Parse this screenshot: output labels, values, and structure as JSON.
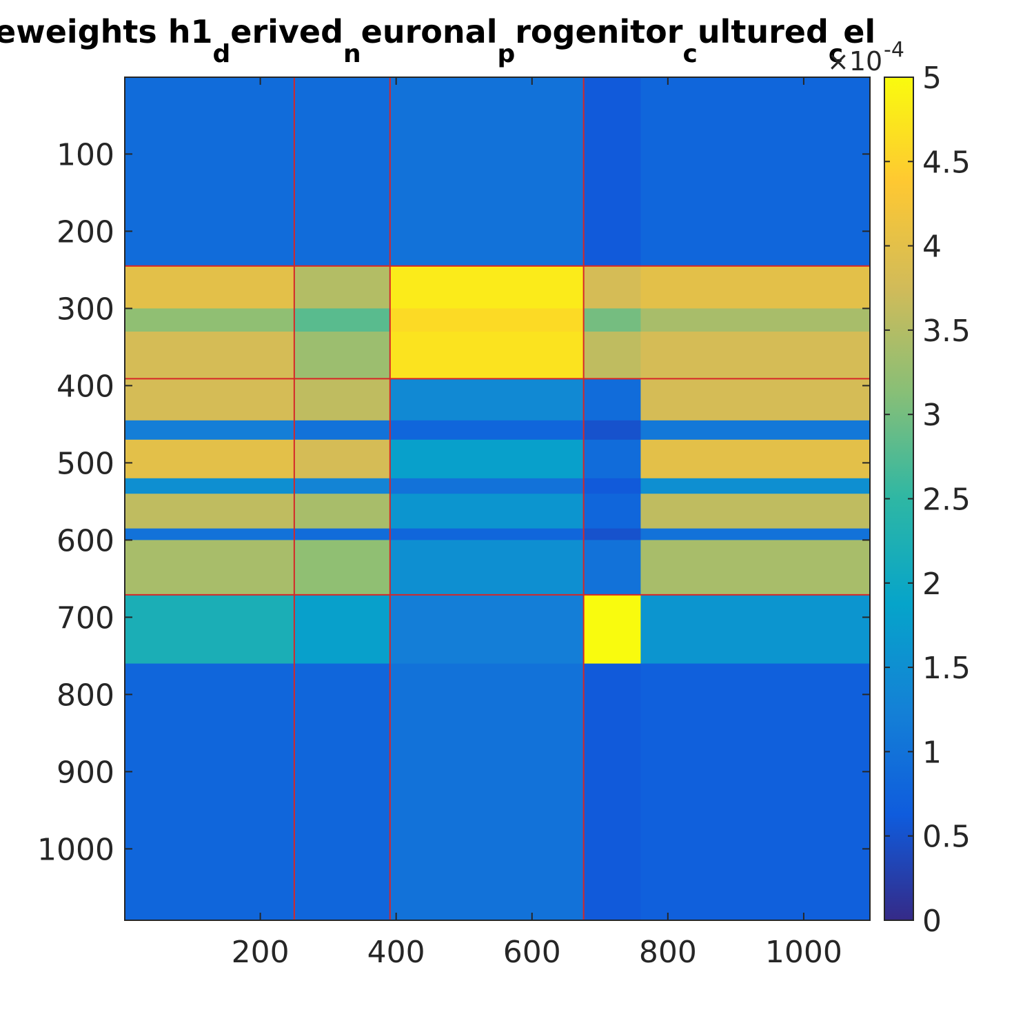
{
  "chart_data": {
    "type": "heatmap",
    "title_parts": [
      {
        "text": "eweights h1"
      },
      {
        "text": "d",
        "sub": true
      },
      {
        "text": "erived"
      },
      {
        "text": "n",
        "sub": true
      },
      {
        "text": "euronal"
      },
      {
        "text": "p",
        "sub": true
      },
      {
        "text": "rogenitor"
      },
      {
        "text": "c",
        "sub": true
      },
      {
        "text": "ultured"
      },
      {
        "text": "c",
        "sub": true
      },
      {
        "text": "el"
      }
    ],
    "xlim": [
      0.5,
      1097.5
    ],
    "ylim": [
      0.5,
      1092.5
    ],
    "xticks": [
      200,
      400,
      600,
      800,
      1000
    ],
    "yticks": [
      100,
      200,
      300,
      400,
      500,
      600,
      700,
      800,
      900,
      1000
    ],
    "row_edges": [
      0.5,
      245,
      300,
      330,
      391,
      445,
      470,
      520,
      540,
      585,
      600,
      671,
      760,
      1092.5
    ],
    "col_edges": [
      0.5,
      250,
      391,
      676,
      760,
      1097.5
    ],
    "values": [
      [
        0.9,
        0.9,
        1.0,
        0.6,
        0.8
      ],
      [
        4.0,
        3.5,
        4.8,
        3.8,
        4.0
      ],
      [
        3.2,
        2.8,
        4.6,
        3.0,
        3.4
      ],
      [
        3.8,
        3.3,
        4.7,
        3.6,
        3.8
      ],
      [
        3.8,
        3.6,
        1.4,
        0.9,
        3.8
      ],
      [
        1.2,
        1.0,
        0.8,
        0.5,
        1.1
      ],
      [
        4.0,
        3.8,
        1.8,
        0.9,
        4.0
      ],
      [
        1.5,
        1.3,
        1.0,
        0.6,
        1.5
      ],
      [
        3.6,
        3.4,
        1.6,
        0.8,
        3.6
      ],
      [
        1.0,
        0.9,
        0.8,
        0.5,
        1.0
      ],
      [
        3.4,
        3.2,
        1.5,
        1.0,
        3.4
      ],
      [
        2.2,
        1.8,
        1.2,
        5,
        1.6
      ],
      [
        0.8,
        0.8,
        1.0,
        0.6,
        0.7
      ]
    ],
    "clim": [
      0,
      5
    ],
    "colorbar_ticks": [
      0,
      0.5,
      1,
      1.5,
      2,
      2.5,
      3,
      3.5,
      4,
      4.5,
      5
    ],
    "colorbar_multiplier": {
      "base": "×10",
      "exponent": "-4"
    },
    "colormap": [
      "#352a87",
      "#0f5cdd",
      "#1481d6",
      "#06a4ca",
      "#2eb7a4",
      "#87bf77",
      "#d1bb59",
      "#fec832",
      "#f9fb0e"
    ],
    "row_boundaries": [
      245,
      391,
      671
    ],
    "col_boundaries": [
      250,
      391,
      676
    ],
    "boundary_color": "#d62728"
  }
}
